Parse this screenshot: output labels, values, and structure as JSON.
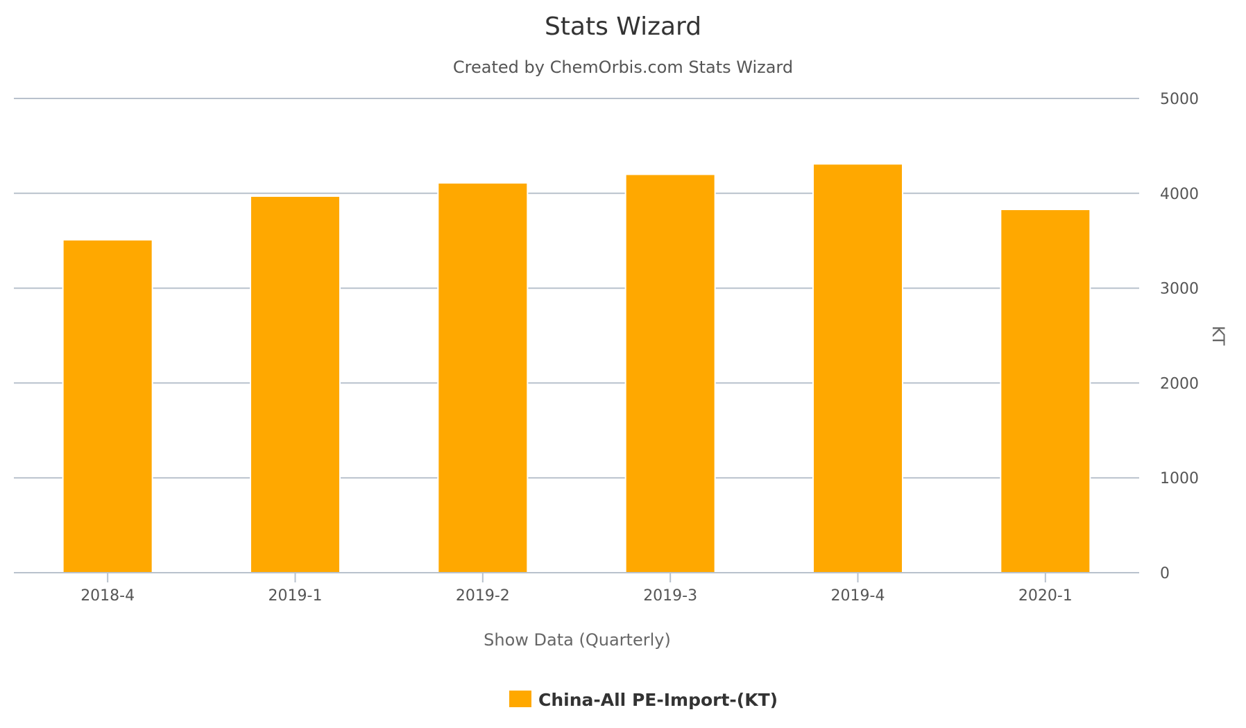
{
  "chart_data": {
    "type": "bar",
    "title": "Stats Wizard",
    "subtitle": "Created by ChemOrbis.com Stats Wizard",
    "xlabel": "Show Data (Quarterly)",
    "ylabel": "KT",
    "categories": [
      "2018-4",
      "2019-1",
      "2019-2",
      "2019-3",
      "2019-4",
      "2020-1"
    ],
    "series": [
      {
        "name": "China-All PE-Import-(KT)",
        "values": [
          3510,
          3970,
          4110,
          4200,
          4310,
          3830
        ],
        "color": "#FFA800"
      }
    ],
    "ylim": [
      0,
      5000
    ],
    "yticks": [
      0,
      1000,
      2000,
      3000,
      4000,
      5000
    ],
    "y_axis_side": "right",
    "grid": true,
    "legend": "bottom-center",
    "colors": {
      "grid": "#B8C1CC",
      "axis": "#B8C1CC"
    }
  }
}
